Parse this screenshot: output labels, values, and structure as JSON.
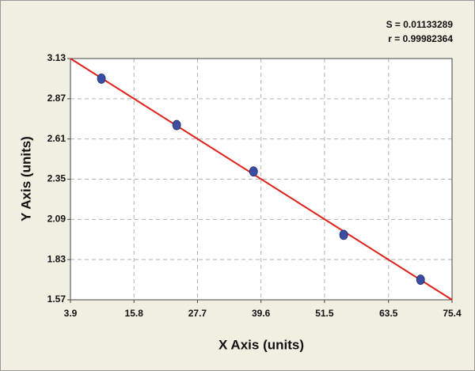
{
  "chart_data": {
    "type": "scatter",
    "x_label": "X Axis (units)",
    "y_label": "Y Axis (units)",
    "annotations": [
      "S = 0.01133289",
      "r = 0.99982364"
    ],
    "series": [
      {
        "color": "#3b4ea3",
        "x": [
          9.7,
          23.8,
          38.2,
          55.1,
          69.5
        ],
        "values": [
          3.0,
          2.7,
          2.4,
          1.99,
          1.7
        ]
      }
    ],
    "fit_line": {
      "color": "#e0201b",
      "x": [
        3.9,
        75.4
      ],
      "values": [
        3.13,
        1.57
      ]
    },
    "xlim": [
      3.9,
      75.4
    ],
    "xticks": [
      3.9,
      15.8,
      27.7,
      39.6,
      51.5,
      63.5,
      75.4
    ],
    "ylim": [
      1.57,
      3.13
    ],
    "yticks": [
      1.57,
      1.83,
      2.09,
      2.35,
      2.61,
      2.87,
      3.13
    ],
    "grid": true
  }
}
